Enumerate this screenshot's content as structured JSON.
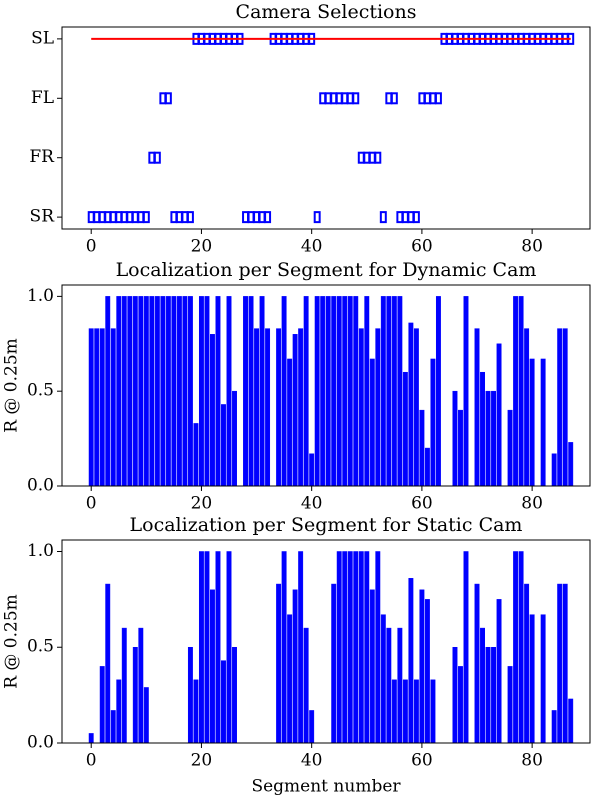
{
  "chart_data": [
    {
      "type": "scatter",
      "title": "Camera Selections",
      "x": [
        0,
        1,
        2,
        3,
        4,
        5,
        6,
        7,
        8,
        9,
        10,
        11,
        12,
        13,
        14,
        15,
        16,
        17,
        18,
        19,
        20,
        21,
        22,
        23,
        24,
        25,
        26,
        27,
        28,
        29,
        30,
        31,
        32,
        33,
        34,
        35,
        36,
        37,
        38,
        39,
        40,
        41,
        42,
        43,
        44,
        45,
        46,
        47,
        48,
        49,
        50,
        51,
        52,
        53,
        54,
        55,
        56,
        57,
        58,
        59,
        60,
        61,
        62,
        63,
        64,
        65,
        66,
        67,
        68,
        69,
        70,
        71,
        72,
        73,
        74,
        75,
        76,
        77,
        78,
        79,
        80,
        81,
        82,
        83,
        84,
        85,
        86,
        87
      ],
      "series": [
        {
          "color": "#0000ff",
          "values": [
            0,
            0,
            0,
            0,
            0,
            0,
            0,
            0,
            0,
            0,
            0,
            1,
            1,
            2,
            2,
            0,
            0,
            0,
            0,
            3,
            3,
            3,
            3,
            3,
            3,
            3,
            3,
            3,
            0,
            0,
            0,
            0,
            0,
            3,
            3,
            3,
            3,
            3,
            3,
            3,
            3,
            0,
            2,
            2,
            2,
            2,
            2,
            2,
            2,
            1,
            1,
            1,
            1,
            0,
            2,
            2,
            0,
            0,
            0,
            0,
            2,
            2,
            2,
            2,
            3,
            3,
            3,
            3,
            3,
            3,
            3,
            3,
            3,
            3,
            3,
            3,
            3,
            3,
            3,
            3,
            3,
            3,
            3,
            3,
            3,
            3,
            3,
            3
          ]
        },
        {
          "color": "#ff0000",
          "x": [
            0,
            87
          ],
          "values": [
            3,
            3
          ]
        }
      ],
      "xlim": [
        -5.3,
        90.5
      ],
      "xticks": [
        0,
        20,
        40,
        60,
        80
      ],
      "ylim": [
        -0.2,
        3.2
      ],
      "yticks": [
        {
          "value": 0,
          "label": "SR"
        },
        {
          "value": 1,
          "label": "FR"
        },
        {
          "value": 2,
          "label": "FL"
        },
        {
          "value": 3,
          "label": "SL"
        }
      ]
    },
    {
      "type": "bar",
      "title": "Localization per Segment for Dynamic Cam",
      "ylabel": "R @ 0.25m",
      "color": "#0000ff",
      "x": [
        0,
        1,
        2,
        3,
        4,
        5,
        6,
        7,
        8,
        9,
        10,
        11,
        12,
        13,
        14,
        15,
        16,
        17,
        18,
        19,
        20,
        21,
        22,
        23,
        24,
        25,
        26,
        27,
        28,
        29,
        30,
        31,
        32,
        33,
        34,
        35,
        36,
        37,
        38,
        39,
        40,
        41,
        42,
        43,
        44,
        45,
        46,
        47,
        48,
        49,
        50,
        51,
        52,
        53,
        54,
        55,
        56,
        57,
        58,
        59,
        60,
        61,
        62,
        63,
        64,
        65,
        66,
        67,
        68,
        69,
        70,
        71,
        72,
        73,
        74,
        75,
        76,
        77,
        78,
        79,
        80,
        81,
        82,
        83,
        84,
        85,
        86,
        87
      ],
      "values": [
        0.83,
        0.83,
        0.83,
        1,
        0.83,
        1,
        1,
        1,
        1,
        1,
        1,
        1,
        1,
        1,
        1,
        1,
        1,
        1,
        1,
        0.33,
        1,
        1,
        0.8,
        1,
        0.43,
        1,
        0.5,
        0,
        1,
        1,
        0.83,
        1,
        0.83,
        0,
        0.83,
        1,
        0.67,
        0.8,
        0.83,
        1,
        0.17,
        1,
        1,
        1,
        1,
        1,
        1,
        1,
        1,
        0.83,
        1,
        0.67,
        0.83,
        1,
        1,
        1,
        1,
        0.6,
        0.86,
        0.83,
        0.4,
        0.2,
        0.67,
        1,
        0,
        0,
        0.5,
        0.4,
        1,
        0,
        0.83,
        0.6,
        0.5,
        0.5,
        0.75,
        0,
        0.4,
        1,
        1,
        0.83,
        0.67,
        0,
        0.67,
        0,
        0.17,
        0.83,
        0.83,
        0.23
      ],
      "xlim": [
        -5.3,
        90.5
      ],
      "xticks": [
        0,
        20,
        40,
        60,
        80
      ],
      "ylim": [
        0,
        1.06
      ],
      "yticks": [
        {
          "value": 0,
          "label": "0.0"
        },
        0.5,
        {
          "value": 1,
          "label": "1.0"
        }
      ]
    },
    {
      "type": "bar",
      "title": "Localization per Segment for Static Cam",
      "ylabel": "R @ 0.25m",
      "xlabel": "Segment number",
      "color": "#0000ff",
      "x": [
        0,
        1,
        2,
        3,
        4,
        5,
        6,
        7,
        8,
        9,
        10,
        11,
        12,
        13,
        14,
        15,
        16,
        17,
        18,
        19,
        20,
        21,
        22,
        23,
        24,
        25,
        26,
        27,
        28,
        29,
        30,
        31,
        32,
        33,
        34,
        35,
        36,
        37,
        38,
        39,
        40,
        41,
        42,
        43,
        44,
        45,
        46,
        47,
        48,
        49,
        50,
        51,
        52,
        53,
        54,
        55,
        56,
        57,
        58,
        59,
        60,
        61,
        62,
        63,
        64,
        65,
        66,
        67,
        68,
        69,
        70,
        71,
        72,
        73,
        74,
        75,
        76,
        77,
        78,
        79,
        80,
        81,
        82,
        83,
        84,
        85,
        86,
        87
      ],
      "values": [
        0.05,
        0,
        0.4,
        0.83,
        0.17,
        0.33,
        0.6,
        0,
        0.5,
        0.6,
        0.29,
        0,
        0,
        0,
        0,
        0,
        0,
        0,
        0.5,
        0.33,
        1,
        1,
        0.8,
        1,
        0.43,
        1,
        0.5,
        0,
        0,
        0,
        0,
        0,
        0,
        0,
        0.83,
        1,
        0.67,
        0.8,
        1,
        0.6,
        0.17,
        0,
        0,
        0,
        0.83,
        1,
        1,
        1,
        1,
        1,
        1,
        0.8,
        1,
        0.67,
        0.6,
        0.33,
        0.6,
        0.33,
        0.86,
        0.33,
        0.8,
        0.75,
        0.33,
        0,
        0,
        0,
        0.5,
        0.4,
        1,
        0,
        0.83,
        0.6,
        0.5,
        0.5,
        0.75,
        0,
        0.4,
        1,
        1,
        0.83,
        0.67,
        0,
        0.67,
        0,
        0.17,
        0.83,
        0.83,
        0.23
      ],
      "xlim": [
        -5.3,
        90.5
      ],
      "xticks": [
        0,
        20,
        40,
        60,
        80
      ],
      "ylim": [
        0,
        1.06
      ],
      "yticks": [
        {
          "value": 0,
          "label": "0.0"
        },
        0.5,
        {
          "value": 1,
          "label": "1.0"
        }
      ]
    }
  ]
}
